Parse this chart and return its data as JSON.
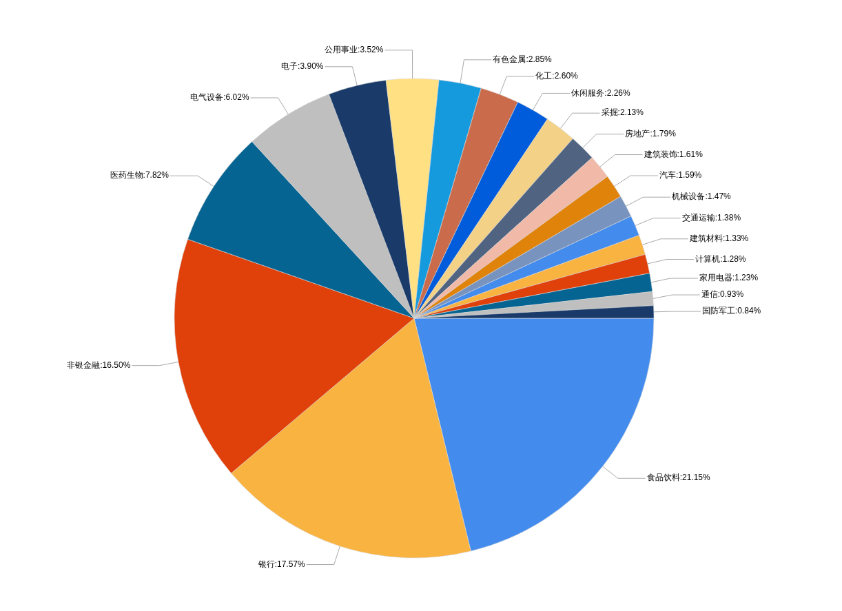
{
  "chart_data": {
    "type": "pie",
    "categories": [
      "食品饮料",
      "银行",
      "非银金融",
      "医药生物",
      "电气设备",
      "电子",
      "公用事业",
      "有色金属",
      "化工",
      "休闲服务",
      "采掘",
      "房地产",
      "建筑装饰",
      "汽车",
      "机械设备",
      "交通运输",
      "建筑材料",
      "计算机",
      "家用电器",
      "通信",
      "国防军工"
    ],
    "values": [
      21.15,
      17.57,
      16.5,
      7.82,
      6.02,
      3.9,
      3.52,
      2.85,
      2.6,
      2.26,
      2.13,
      1.79,
      1.61,
      1.59,
      1.47,
      1.38,
      1.33,
      1.28,
      1.23,
      0.93,
      0.84
    ],
    "value_labels": [
      "21.15%",
      "17.57%",
      "16.50%",
      "7.82%",
      "6.02%",
      "3.90%",
      "3.52%",
      "2.85%",
      "2.60%",
      "2.26%",
      "2.13%",
      "1.79%",
      "1.61%",
      "1.59%",
      "1.47%",
      "1.38%",
      "1.33%",
      "1.28%",
      "1.23%",
      "0.93%",
      "0.84%"
    ],
    "colors": [
      "#438ced",
      "#f9b340",
      "#e0400a",
      "#056492",
      "#bfbfbf",
      "#1a3b69",
      "#ffe083",
      "#159ade",
      "#ca6c4c",
      "#005cdb",
      "#f3d288",
      "#506381",
      "#f1b9a8",
      "#e0830a",
      "#7893be",
      "#438ced",
      "#f9b340",
      "#e0400a",
      "#056492",
      "#bfbfbf",
      "#1a3b69"
    ]
  }
}
